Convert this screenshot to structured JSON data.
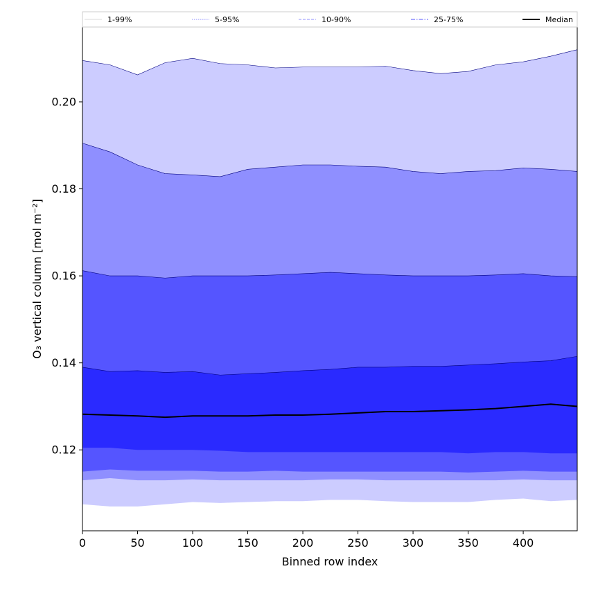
{
  "chart_data": {
    "type": "area",
    "xlabel": "Binned row index",
    "ylabel": "O₃ vertical column [mol m⁻²]",
    "xlim": [
      0,
      449
    ],
    "ylim": [
      0.1014,
      0.2172
    ],
    "x_ticks": [
      0,
      50,
      100,
      150,
      200,
      250,
      300,
      350,
      400
    ],
    "y_ticks": [
      0.12,
      0.14,
      0.16,
      0.18,
      0.2
    ],
    "y_tick_labels": [
      "0.12",
      "0.14",
      "0.16",
      "0.18",
      "0.20"
    ],
    "legend_position": "top",
    "x": [
      0,
      25,
      50,
      75,
      100,
      125,
      150,
      175,
      200,
      225,
      250,
      275,
      300,
      325,
      350,
      375,
      400,
      425,
      449
    ],
    "bands": [
      {
        "name": "1-99%",
        "color": "#ccccff",
        "line_style": "solid",
        "line_color": "#d8d8d8",
        "lower": [
          0.1075,
          0.107,
          0.107,
          0.1075,
          0.108,
          0.1078,
          0.108,
          0.1082,
          0.1082,
          0.1085,
          0.1085,
          0.1082,
          0.108,
          0.108,
          0.108,
          0.1085,
          0.1088,
          0.1082,
          0.1085
        ],
        "upper": [
          0.2095,
          0.2085,
          0.2062,
          0.209,
          0.21,
          0.2088,
          0.2085,
          0.2078,
          0.208,
          0.208,
          0.208,
          0.2082,
          0.2072,
          0.2065,
          0.207,
          0.2085,
          0.2092,
          0.2105,
          0.212
        ]
      },
      {
        "name": "5-95%",
        "color": "#8f8fff",
        "line_style": "dotted",
        "line_color": "#8f8fff",
        "lower": [
          0.113,
          0.1135,
          0.113,
          0.113,
          0.1132,
          0.113,
          0.113,
          0.113,
          0.113,
          0.1132,
          0.1132,
          0.113,
          0.113,
          0.113,
          0.113,
          0.113,
          0.1132,
          0.113,
          0.113
        ],
        "upper": [
          0.1905,
          0.1885,
          0.1855,
          0.1835,
          0.1832,
          0.1828,
          0.1845,
          0.185,
          0.1855,
          0.1855,
          0.1852,
          0.185,
          0.184,
          0.1835,
          0.184,
          0.1842,
          0.1848,
          0.1845,
          0.184
        ]
      },
      {
        "name": "10-90%",
        "color": "#5555ff",
        "line_style": "dashed",
        "line_color": "#8f8fff",
        "lower": [
          0.115,
          0.1155,
          0.1152,
          0.1152,
          0.1152,
          0.115,
          0.115,
          0.1152,
          0.115,
          0.115,
          0.115,
          0.115,
          0.115,
          0.115,
          0.1148,
          0.115,
          0.1152,
          0.115,
          0.115
        ],
        "upper": [
          0.1612,
          0.16,
          0.16,
          0.1595,
          0.16,
          0.16,
          0.16,
          0.1602,
          0.1605,
          0.1608,
          0.1605,
          0.1602,
          0.16,
          0.16,
          0.16,
          0.1602,
          0.1605,
          0.16,
          0.1598
        ]
      },
      {
        "name": "25-75%",
        "color": "#2a2aff",
        "line_style": "dashdot",
        "line_color": "#5555ff",
        "lower": [
          0.1205,
          0.1205,
          0.12,
          0.12,
          0.12,
          0.1198,
          0.1195,
          0.1195,
          0.1195,
          0.1195,
          0.1195,
          0.1195,
          0.1195,
          0.1195,
          0.1192,
          0.1195,
          0.1195,
          0.1192,
          0.1192
        ],
        "upper": [
          0.139,
          0.138,
          0.1382,
          0.1378,
          0.138,
          0.1372,
          0.1375,
          0.1378,
          0.1382,
          0.1385,
          0.139,
          0.139,
          0.1392,
          0.1392,
          0.1395,
          0.1398,
          0.1402,
          0.1405,
          0.1415
        ]
      }
    ],
    "median": {
      "name": "Median",
      "color": "#000000",
      "values": [
        0.1282,
        0.128,
        0.1278,
        0.1275,
        0.1278,
        0.1278,
        0.1278,
        0.128,
        0.128,
        0.1282,
        0.1285,
        0.1288,
        0.1288,
        0.129,
        0.1292,
        0.1295,
        0.13,
        0.1305,
        0.13
      ]
    }
  }
}
